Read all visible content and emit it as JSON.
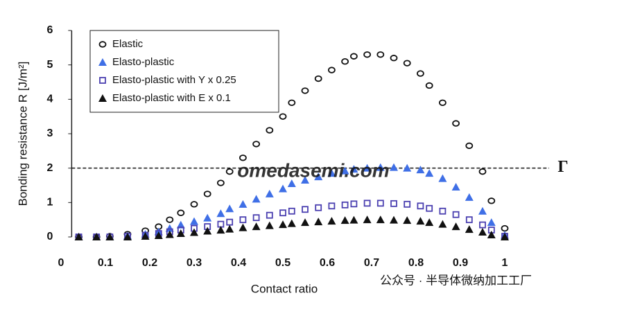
{
  "chart_data": {
    "type": "scatter",
    "x_label": "Contact ratio",
    "y_label": "Bonding resistance R [J/m²]",
    "x": [
      0.04,
      0.08,
      0.11,
      0.15,
      0.19,
      0.22,
      0.245,
      0.27,
      0.3,
      0.33,
      0.36,
      0.38,
      0.41,
      0.44,
      0.47,
      0.5,
      0.52,
      0.55,
      0.58,
      0.61,
      0.64,
      0.66,
      0.69,
      0.72,
      0.75,
      0.78,
      0.81,
      0.83,
      0.86,
      0.89,
      0.92,
      0.95,
      0.97,
      1.0
    ],
    "series": [
      {
        "name": "Elastic",
        "color": "#111111",
        "marker": "circle",
        "filled": false,
        "values": [
          0,
          0,
          0.02,
          0.08,
          0.18,
          0.3,
          0.5,
          0.7,
          0.95,
          1.25,
          1.57,
          1.9,
          2.3,
          2.7,
          3.1,
          3.5,
          3.9,
          4.25,
          4.6,
          4.85,
          5.1,
          5.25,
          5.3,
          5.3,
          5.2,
          5.05,
          4.75,
          4.4,
          3.9,
          3.3,
          2.65,
          1.9,
          1.05,
          0.25
        ]
      },
      {
        "name": "Elasto-plastic",
        "color": "#3f6fe6",
        "marker": "triangle",
        "filled": true,
        "values": [
          0,
          0,
          0,
          0.03,
          0.08,
          0.15,
          0.25,
          0.35,
          0.45,
          0.55,
          0.68,
          0.82,
          0.95,
          1.1,
          1.25,
          1.4,
          1.55,
          1.65,
          1.75,
          1.85,
          1.92,
          1.97,
          2.0,
          2.02,
          2.02,
          2.0,
          1.95,
          1.85,
          1.7,
          1.45,
          1.15,
          0.75,
          0.42,
          0.05
        ]
      },
      {
        "name": "Elasto-plastic with Y x 0.25",
        "color": "#4a3fb0",
        "marker": "square",
        "filled": false,
        "values": [
          0,
          0,
          0,
          0.02,
          0.05,
          0.1,
          0.15,
          0.2,
          0.25,
          0.3,
          0.37,
          0.43,
          0.5,
          0.56,
          0.63,
          0.7,
          0.75,
          0.8,
          0.85,
          0.9,
          0.93,
          0.96,
          0.98,
          0.98,
          0.97,
          0.95,
          0.9,
          0.83,
          0.75,
          0.65,
          0.5,
          0.35,
          0.2,
          0.02
        ]
      },
      {
        "name": "Elasto-plastic with E x 0.1",
        "color": "#111111",
        "marker": "triangle",
        "filled": true,
        "values": [
          0,
          0,
          0,
          0,
          0.02,
          0.04,
          0.07,
          0.1,
          0.13,
          0.17,
          0.2,
          0.23,
          0.27,
          0.3,
          0.33,
          0.36,
          0.39,
          0.42,
          0.44,
          0.46,
          0.48,
          0.49,
          0.5,
          0.5,
          0.49,
          0.48,
          0.46,
          0.42,
          0.37,
          0.3,
          0.22,
          0.14,
          0.06,
          0
        ]
      }
    ],
    "xlim": [
      0.024,
      1.1
    ],
    "ylim": [
      0,
      6
    ],
    "xticks": [
      0,
      0.1,
      0.2,
      0.3,
      0.4,
      0.5,
      0.6,
      0.7,
      0.8,
      0.9,
      1
    ],
    "yticks": [
      0,
      1,
      2,
      3,
      4,
      5,
      6
    ],
    "reference_line": {
      "value": 2,
      "label": "Γ"
    },
    "watermarks": [
      "omedasemi.com",
      "公众号 · 半导体微纳加工工厂"
    ]
  }
}
